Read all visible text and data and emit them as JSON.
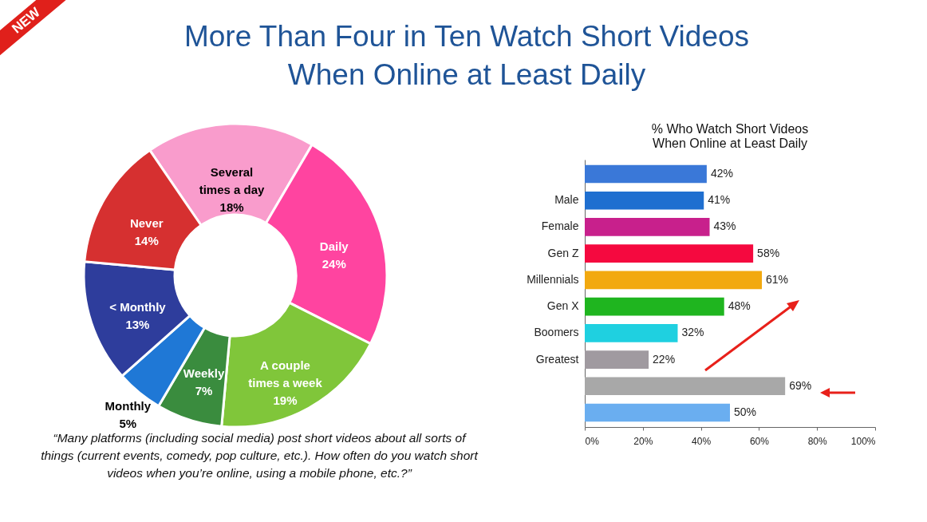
{
  "chart_data": [
    {
      "type": "donut",
      "title": "More Than Four in Ten Watch Short Videos When Online at Least Daily",
      "categories": [
        "Several times a day",
        "Daily",
        "A couple times a week",
        "Weekly",
        "Monthly",
        "< Monthly",
        "Never"
      ],
      "values": [
        18,
        24,
        19,
        7,
        5,
        13,
        14
      ],
      "value_labels": [
        "18%",
        "24%",
        "19%",
        "7%",
        "5%",
        "13%",
        "14%"
      ],
      "colors": [
        "#f99ccc",
        "#ff44a0",
        "#80c63a",
        "#3a8c3e",
        "#1f78d6",
        "#2e3d9c",
        "#d63030"
      ],
      "legend": false,
      "annotations": [
        "NEW",
        "“Many platforms (including social media) post short videos about all sorts of things (current events, comedy, pop culture, etc.). How often do you watch short videos when you’re online, using a mobile phone, etc.?”"
      ]
    },
    {
      "type": "bar",
      "orientation": "horizontal",
      "title": "% Who Watch Short Videos When Online at Least Daily",
      "categories": [
        null,
        "Male",
        "Female",
        "Gen Z",
        "Millennials",
        "Gen X",
        "Boomers",
        "Greatest",
        null,
        null
      ],
      "values": [
        42,
        41,
        43,
        58,
        61,
        48,
        32,
        22,
        69,
        50
      ],
      "value_labels": [
        "42%",
        "41%",
        "43%",
        "58%",
        "61%",
        "48%",
        "32%",
        "22%",
        "69%",
        "50%"
      ],
      "colors": [
        "#3a78d8",
        "#1f6fd0",
        "#c8208c",
        "#f5093f",
        "#f2a90f",
        "#1fb51f",
        "#1fd0e0",
        "#a09aa0",
        "#a8a8a8",
        "#6aaef0"
      ],
      "xlim": [
        0,
        100
      ],
      "xticks": [
        {
          "value": 0,
          "label": "0%"
        },
        {
          "value": 20,
          "label": "20%"
        },
        {
          "value": 40,
          "label": "40%"
        },
        {
          "value": 60,
          "label": "60%"
        },
        {
          "value": 80,
          "label": "80%"
        },
        {
          "value": 100,
          "label": "100%"
        }
      ],
      "grid": false,
      "legend": false
    }
  ]
}
